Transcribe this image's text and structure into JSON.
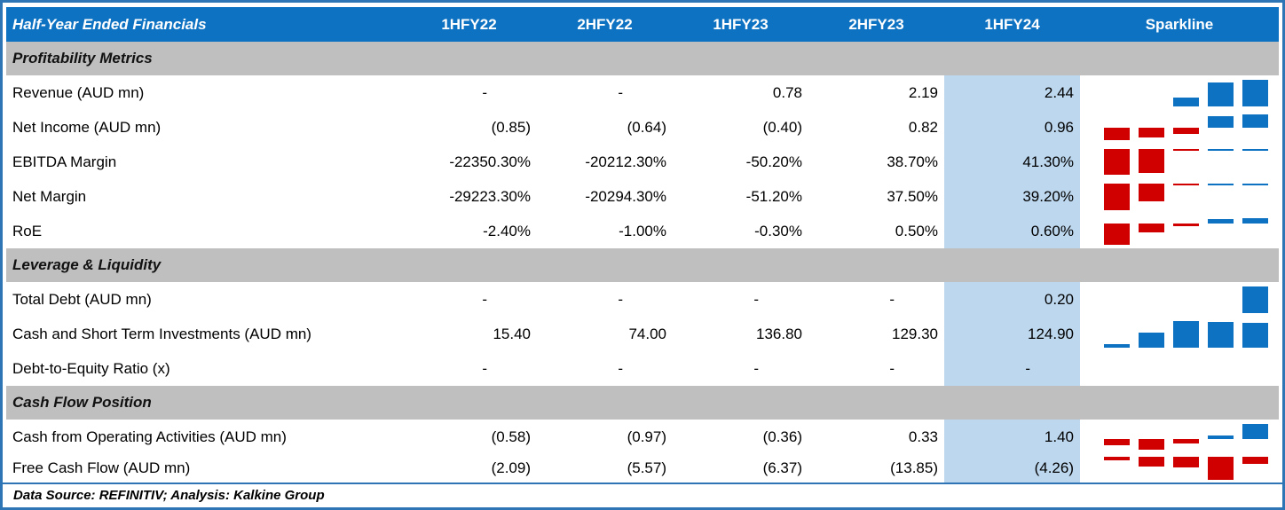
{
  "chart_data": {
    "type": "table",
    "title": "Half-Year Ended Financials",
    "columns": [
      "1HFY22",
      "2HFY22",
      "1HFY23",
      "2HFY23",
      "1HFY24"
    ],
    "highlighted_column": "1HFY24",
    "sparkline_column_label": "Sparkline",
    "footnote": "Data Source: REFINITIV; Analysis: Kalkine Group",
    "sparkline_style": {
      "type": "bar",
      "positive_color": "#0E72C2",
      "negative_color": "#D00000"
    },
    "sections": [
      {
        "title": "Profitability Metrics",
        "rows": [
          {
            "label": "Revenue (AUD mn)",
            "display": [
              "-",
              "-",
              "0.78",
              "2.19",
              "2.44"
            ],
            "values": [
              null,
              null,
              0.78,
              2.19,
              2.44
            ]
          },
          {
            "label": "Net Income (AUD mn)",
            "display": [
              "(0.85)",
              "(0.64)",
              "(0.40)",
              "0.82",
              "0.96"
            ],
            "values": [
              -0.85,
              -0.64,
              -0.4,
              0.82,
              0.96
            ]
          },
          {
            "label": "EBITDA Margin",
            "display": [
              "-22350.30%",
              "-20212.30%",
              "-50.20%",
              "38.70%",
              "41.30%"
            ],
            "values": [
              -22350.3,
              -20212.3,
              -50.2,
              38.7,
              41.3
            ]
          },
          {
            "label": "Net Margin",
            "display": [
              "-29223.30%",
              "-20294.30%",
              "-51.20%",
              "37.50%",
              "39.20%"
            ],
            "values": [
              -29223.3,
              -20294.3,
              -51.2,
              37.5,
              39.2
            ]
          },
          {
            "label": "RoE",
            "display": [
              "-2.40%",
              "-1.00%",
              "-0.30%",
              "0.50%",
              "0.60%"
            ],
            "values": [
              -2.4,
              -1.0,
              -0.3,
              0.5,
              0.6
            ]
          }
        ]
      },
      {
        "title": "Leverage & Liquidity",
        "rows": [
          {
            "label": "Total Debt (AUD mn)",
            "display": [
              "-",
              "-",
              "-",
              "-",
              "0.20"
            ],
            "values": [
              null,
              null,
              null,
              null,
              0.2
            ]
          },
          {
            "label": "Cash and Short Term Investments (AUD mn)",
            "display": [
              "15.40",
              "74.00",
              "136.80",
              "129.30",
              "124.90"
            ],
            "values": [
              15.4,
              74.0,
              136.8,
              129.3,
              124.9
            ]
          },
          {
            "label": "Debt-to-Equity Ratio (x)",
            "display": [
              "-",
              "-",
              "-",
              "-",
              "-"
            ],
            "values": [
              null,
              null,
              null,
              null,
              null
            ]
          }
        ]
      },
      {
        "title": "Cash Flow Position",
        "rows": [
          {
            "label": "Cash from Operating Activities (AUD mn)",
            "display": [
              "(0.58)",
              "(0.97)",
              "(0.36)",
              "0.33",
              "1.40"
            ],
            "values": [
              -0.58,
              -0.97,
              -0.36,
              0.33,
              1.4
            ]
          },
          {
            "label": "Free Cash Flow (AUD mn)",
            "display": [
              "(2.09)",
              "(5.57)",
              "(6.37)",
              "(13.85)",
              "(4.26)"
            ],
            "values": [
              -2.09,
              -5.57,
              -6.37,
              -13.85,
              -4.26
            ]
          }
        ]
      }
    ]
  },
  "colors": {
    "header_blue": "#0E72C2",
    "section_gray": "#BFBFBF",
    "highlight_blue": "#BDD7EE",
    "bar_blue": "#0E72C2",
    "bar_red": "#D00000",
    "border_blue": "#2E75B6",
    "text": "#000000"
  }
}
